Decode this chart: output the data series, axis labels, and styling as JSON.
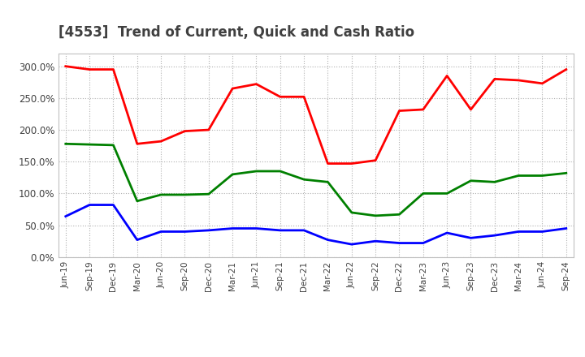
{
  "title": "[4553]  Trend of Current, Quick and Cash Ratio",
  "title_color": "#404040",
  "background_color": "#ffffff",
  "plot_bg_color": "#ffffff",
  "grid_color": "#b0b0b0",
  "x_labels": [
    "Jun-19",
    "Sep-19",
    "Dec-19",
    "Mar-20",
    "Jun-20",
    "Sep-20",
    "Dec-20",
    "Mar-21",
    "Jun-21",
    "Sep-21",
    "Dec-21",
    "Mar-22",
    "Jun-22",
    "Sep-22",
    "Dec-22",
    "Mar-23",
    "Jun-23",
    "Sep-23",
    "Dec-23",
    "Mar-24",
    "Jun-24",
    "Sep-24"
  ],
  "current_ratio": [
    300,
    295,
    295,
    178,
    182,
    198,
    200,
    265,
    272,
    252,
    252,
    147,
    147,
    152,
    230,
    232,
    285,
    232,
    280,
    278,
    273,
    295
  ],
  "quick_ratio": [
    178,
    177,
    176,
    88,
    98,
    98,
    99,
    130,
    135,
    135,
    122,
    118,
    70,
    65,
    67,
    100,
    100,
    120,
    118,
    128,
    128,
    132
  ],
  "cash_ratio": [
    64,
    82,
    82,
    27,
    40,
    40,
    42,
    45,
    45,
    42,
    42,
    27,
    20,
    25,
    22,
    22,
    38,
    30,
    34,
    40,
    40,
    45
  ],
  "ylim": [
    0,
    320
  ],
  "yticks": [
    0,
    50,
    100,
    150,
    200,
    250,
    300
  ],
  "current_color": "#ff0000",
  "quick_color": "#008000",
  "cash_color": "#0000ff",
  "line_width": 2.0
}
